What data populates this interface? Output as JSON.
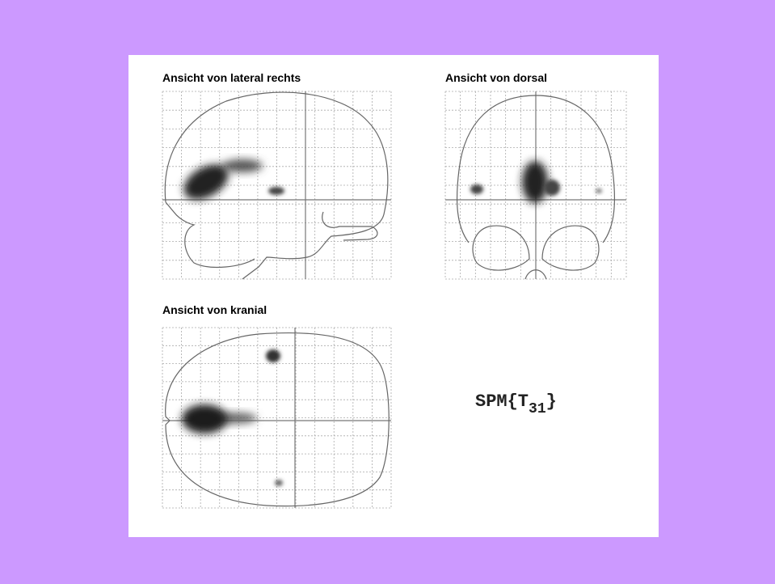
{
  "panels": [
    {
      "title": "Ansicht von lateral rechts"
    },
    {
      "title": "Ansicht von dorsal"
    },
    {
      "title": "Ansicht von kranial"
    }
  ],
  "label": {
    "base": "SPM{T",
    "subscript": "31",
    "close": "}"
  }
}
